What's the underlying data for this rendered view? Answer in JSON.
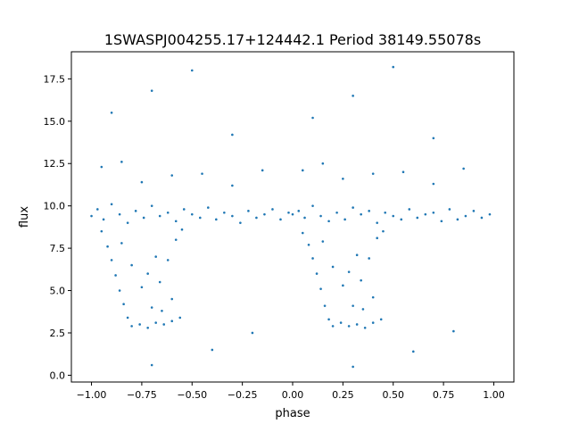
{
  "chart_data": {
    "type": "scatter",
    "title": "1SWASPJ004255.17+124442.1 Period 38149.55078s",
    "xlabel": "phase",
    "ylabel": "flux",
    "xlim": [
      -1.1,
      1.1
    ],
    "ylim": [
      -0.4,
      19.1
    ],
    "xticks": [
      -1.0,
      -0.75,
      -0.5,
      -0.25,
      0.0,
      0.25,
      0.5,
      0.75,
      1.0
    ],
    "xtick_labels": [
      "−1.00",
      "−0.75",
      "−0.50",
      "−0.25",
      "0.00",
      "0.25",
      "0.50",
      "0.75",
      "1.00"
    ],
    "yticks": [
      0.0,
      2.5,
      5.0,
      7.5,
      10.0,
      12.5,
      15.0,
      17.5
    ],
    "ytick_labels": [
      "0.0",
      "2.5",
      "5.0",
      "7.5",
      "10.0",
      "12.5",
      "15.0",
      "17.5"
    ],
    "grid": false,
    "color": "#1f77b4",
    "x": [
      -1.0,
      -0.97,
      -0.94,
      -0.9,
      -0.86,
      -0.82,
      -0.78,
      -0.74,
      -0.7,
      -0.66,
      -0.62,
      -0.58,
      -0.54,
      -0.5,
      -0.46,
      -0.42,
      -0.38,
      -0.34,
      -0.3,
      -0.26,
      -0.22,
      -0.18,
      -0.14,
      -0.1,
      -0.06,
      -0.02,
      -0.95,
      -0.92,
      -0.9,
      -0.88,
      -0.86,
      -0.84,
      -0.82,
      -0.8,
      -0.76,
      -0.72,
      -0.68,
      -0.64,
      -0.6,
      -0.56,
      -0.85,
      -0.8,
      -0.75,
      -0.7,
      -0.66,
      -0.62,
      -0.58,
      -0.55,
      -0.68,
      -0.72,
      -0.6,
      -0.65,
      -0.95,
      -0.85,
      -0.75,
      -0.6,
      -0.45,
      -0.3,
      -0.15,
      -0.9,
      -0.5,
      -0.3,
      -0.7,
      -0.4,
      -0.2,
      -0.7,
      0.0,
      0.03,
      0.06,
      0.1,
      0.14,
      0.18,
      0.22,
      0.26,
      0.3,
      0.34,
      0.38,
      0.42,
      0.46,
      0.5,
      0.54,
      0.58,
      0.62,
      0.66,
      0.7,
      0.74,
      0.78,
      0.82,
      0.86,
      0.9,
      0.94,
      0.98,
      0.05,
      0.08,
      0.1,
      0.12,
      0.14,
      0.16,
      0.18,
      0.2,
      0.24,
      0.28,
      0.32,
      0.36,
      0.4,
      0.44,
      0.15,
      0.2,
      0.25,
      0.3,
      0.34,
      0.38,
      0.42,
      0.45,
      0.32,
      0.28,
      0.4,
      0.35,
      0.05,
      0.15,
      0.25,
      0.4,
      0.55,
      0.7,
      0.85,
      0.1,
      0.5,
      0.7,
      0.3,
      0.6,
      0.8,
      0.3
    ],
    "y": [
      9.4,
      9.8,
      9.2,
      10.1,
      9.5,
      9.0,
      9.7,
      9.3,
      10.0,
      9.4,
      9.6,
      9.1,
      9.8,
      9.5,
      9.3,
      9.9,
      9.2,
      9.6,
      9.4,
      9.0,
      9.7,
      9.3,
      9.5,
      9.8,
      9.2,
      9.6,
      8.5,
      7.6,
      6.8,
      5.9,
      5.0,
      4.2,
      3.4,
      2.9,
      3.0,
      2.8,
      3.1,
      3.0,
      3.2,
      3.4,
      7.8,
      6.5,
      5.2,
      4.0,
      5.5,
      6.8,
      8.0,
      8.6,
      7.0,
      6.0,
      4.5,
      3.8,
      12.3,
      12.6,
      11.4,
      11.8,
      11.9,
      11.2,
      12.1,
      15.5,
      18.0,
      14.2,
      16.8,
      1.5,
      2.5,
      0.6,
      9.5,
      9.7,
      9.3,
      10.0,
      9.4,
      9.1,
      9.6,
      9.2,
      9.9,
      9.5,
      9.7,
      9.0,
      9.6,
      9.4,
      9.2,
      9.8,
      9.3,
      9.5,
      9.6,
      9.1,
      9.8,
      9.2,
      9.4,
      9.7,
      9.3,
      9.5,
      8.4,
      7.7,
      6.9,
      6.0,
      5.1,
      4.1,
      3.3,
      2.9,
      3.1,
      2.9,
      3.0,
      2.8,
      3.1,
      3.3,
      7.9,
      6.4,
      5.3,
      4.1,
      5.6,
      6.9,
      8.1,
      8.5,
      7.1,
      6.1,
      4.6,
      3.9,
      12.1,
      12.5,
      11.6,
      11.9,
      12.0,
      11.3,
      12.2,
      15.2,
      18.2,
      14.0,
      16.5,
      1.4,
      2.6,
      0.5
    ]
  }
}
